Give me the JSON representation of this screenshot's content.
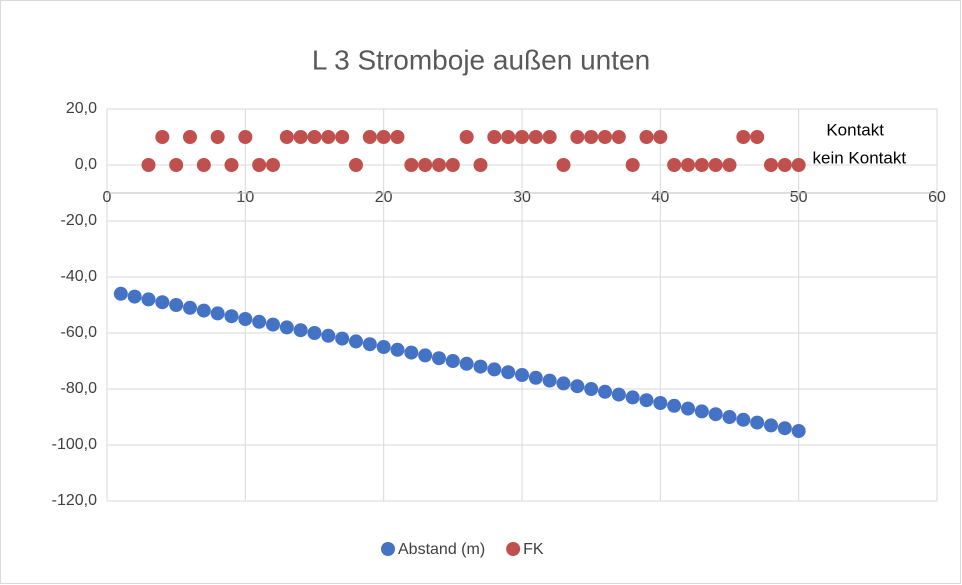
{
  "chart_data": {
    "type": "scatter",
    "title": "L 3 Stromboje außen unten",
    "xlim": [
      0,
      60
    ],
    "xticks": [
      0,
      10,
      20,
      30,
      40,
      50,
      60
    ],
    "ylim": [
      -120,
      20
    ],
    "yticks": [
      {
        "value": -120,
        "label": "-120,0"
      },
      {
        "value": -100,
        "label": "-100,0"
      },
      {
        "value": -80,
        "label": "-80,0"
      },
      {
        "value": -60,
        "label": "-60,0"
      },
      {
        "value": -40,
        "label": "-40,0"
      },
      {
        "value": -20,
        "label": "-20,0"
      },
      {
        "value": 0,
        "label": "0,0"
      },
      {
        "value": 20,
        "label": "20,0"
      }
    ],
    "x_axis_crosses_at": -10,
    "grid": true,
    "legend": "bottom",
    "annotations": [
      {
        "text": "Kontakt",
        "x": 52,
        "y": 10
      },
      {
        "text": "kein Kontakt",
        "x": 51,
        "y": 0
      }
    ],
    "series": [
      {
        "name": "Abstand (m)",
        "color": "#4472c4",
        "x": [
          1,
          2,
          3,
          4,
          5,
          6,
          7,
          8,
          9,
          10,
          11,
          12,
          13,
          14,
          15,
          16,
          17,
          18,
          19,
          20,
          21,
          22,
          23,
          24,
          25,
          26,
          27,
          28,
          29,
          30,
          31,
          32,
          33,
          34,
          35,
          36,
          37,
          38,
          39,
          40,
          41,
          42,
          43,
          44,
          45,
          46,
          47,
          48,
          49,
          50
        ],
        "values": [
          -46,
          -47,
          -48,
          -49,
          -50,
          -51,
          -52,
          -53,
          -54,
          -55,
          -56,
          -57,
          -58,
          -59,
          -60,
          -61,
          -62,
          -63,
          -64,
          -65,
          -66,
          -67,
          -68,
          -69,
          -70,
          -71,
          -72,
          -73,
          -74,
          -75,
          -76,
          -77,
          -78,
          -79,
          -80,
          -81,
          -82,
          -83,
          -84,
          -85,
          -86,
          -87,
          -88,
          -89,
          -90,
          -91,
          -92,
          -93,
          -94,
          -95
        ]
      },
      {
        "name": "FK",
        "color": "#c0504d",
        "x": [
          3,
          4,
          5,
          6,
          7,
          8,
          9,
          10,
          11,
          12,
          13,
          14,
          15,
          16,
          17,
          18,
          19,
          20,
          21,
          22,
          23,
          24,
          25,
          26,
          27,
          28,
          29,
          30,
          31,
          32,
          33,
          34,
          35,
          36,
          37,
          38,
          39,
          40,
          41,
          42,
          43,
          44,
          45,
          46,
          47,
          48,
          49,
          50
        ],
        "values": [
          0,
          10,
          0,
          10,
          0,
          10,
          0,
          10,
          0,
          0,
          10,
          10,
          10,
          10,
          10,
          0,
          10,
          10,
          10,
          0,
          0,
          0,
          0,
          10,
          0,
          10,
          10,
          10,
          10,
          10,
          0,
          10,
          10,
          10,
          10,
          0,
          10,
          10,
          0,
          0,
          0,
          0,
          0,
          10,
          10,
          0,
          0,
          0
        ]
      }
    ]
  }
}
